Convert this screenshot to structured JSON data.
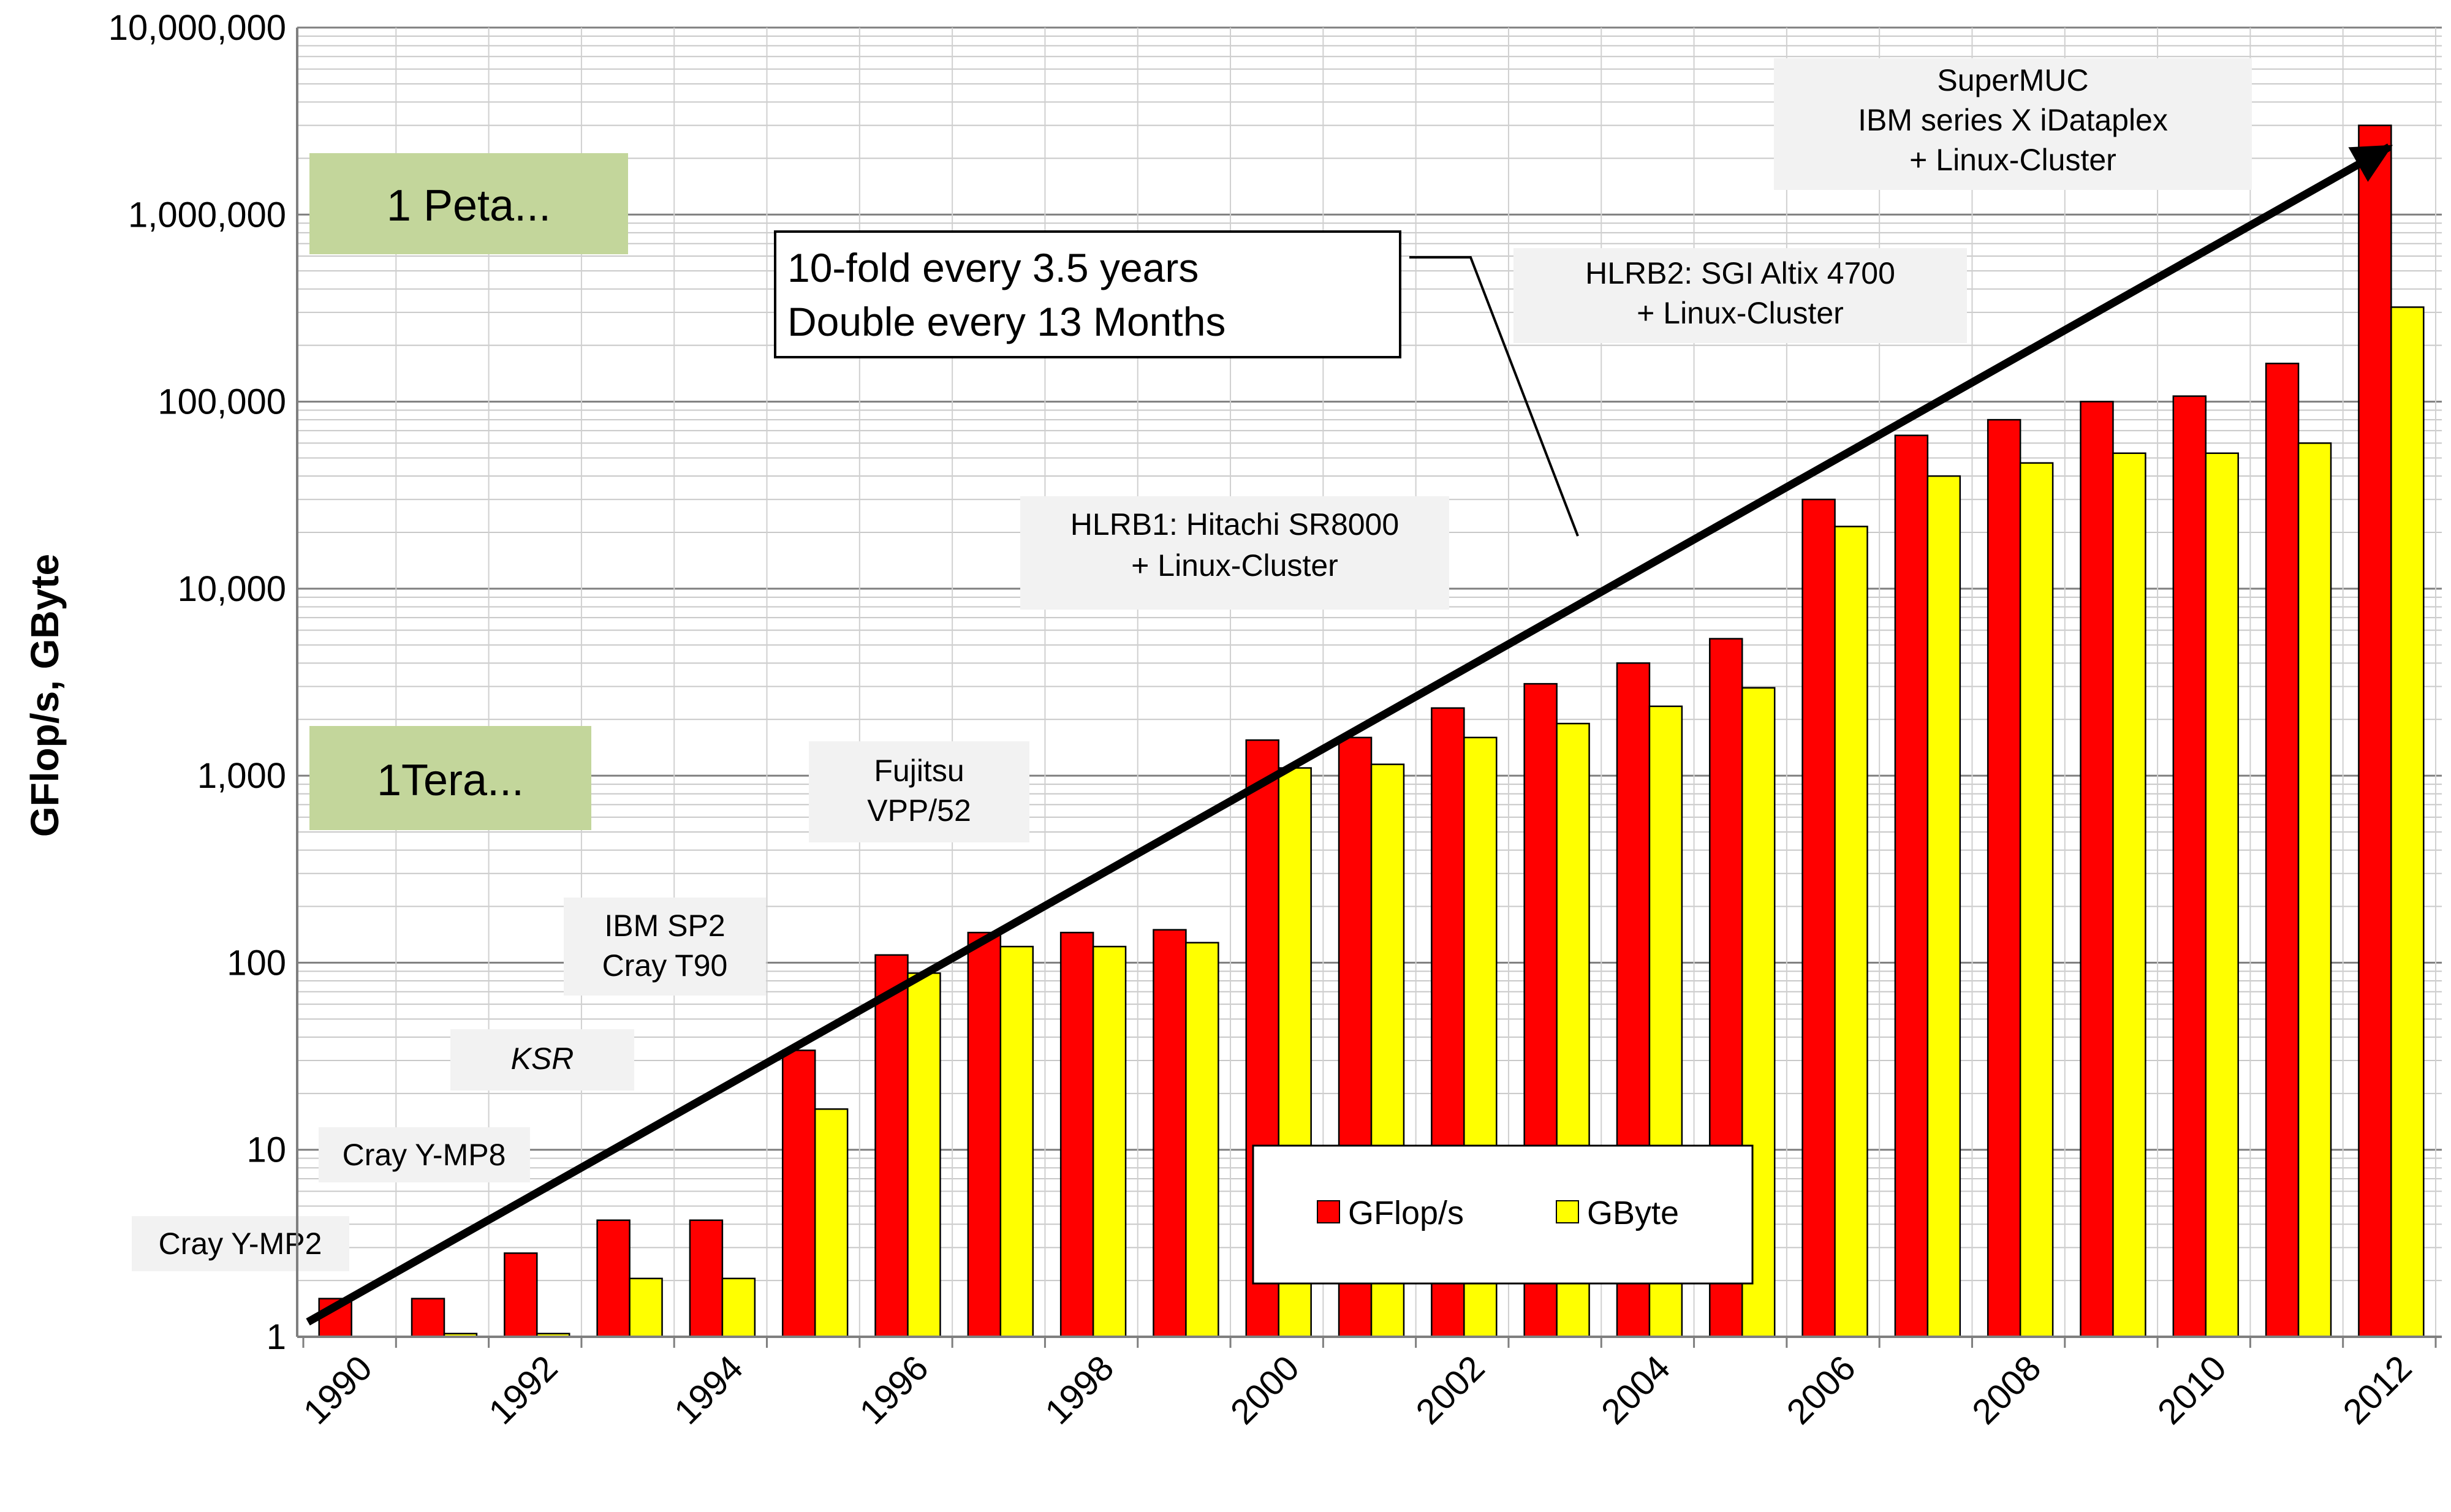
{
  "chart_data": {
    "type": "bar",
    "title": "",
    "xlabel": "",
    "ylabel": "GFlop/s, GByte",
    "yscale": "log",
    "ylim": [
      1,
      10000000
    ],
    "grid": true,
    "legend_position": "bottom-center",
    "colors": {
      "GFlop/s": "#ff0000",
      "GByte": "#ffff00",
      "bar_outline": "#000000",
      "highlight": "#c3d69b",
      "label_bg": "#f2f2f2"
    },
    "y_ticks": [
      "1",
      "10",
      "100",
      "1,000",
      "10,000",
      "100,000",
      "1,000,000",
      "10,000,000"
    ],
    "x_tick_labels": [
      "1990",
      "1992",
      "1994",
      "1996",
      "1998",
      "2000",
      "2002",
      "2004",
      "2006",
      "2008",
      "2010",
      "2012"
    ],
    "categories": [
      1990,
      1991,
      1992,
      1993,
      1994,
      1995,
      1996,
      1997,
      1998,
      1999,
      2000,
      2001,
      2002,
      2003,
      2004,
      2005,
      2006,
      2007,
      2008,
      2009,
      2010,
      2011,
      2012
    ],
    "series": [
      {
        "name": "GFlop/s",
        "values": [
          1.6,
          1.6,
          2.8,
          4.2,
          4.2,
          34,
          110,
          145,
          145,
          150,
          1550,
          1600,
          2300,
          3100,
          4000,
          5400,
          30000,
          66000,
          80000,
          100000,
          107000,
          160000,
          3000000
        ]
      },
      {
        "name": "GByte",
        "values": [
          1.0,
          1.04,
          1.04,
          2.05,
          2.05,
          16.5,
          88,
          122,
          122,
          128,
          1100,
          1150,
          1600,
          1900,
          2350,
          2950,
          21500,
          40000,
          47000,
          53000,
          53000,
          60000,
          320000
        ]
      }
    ],
    "annotations": {
      "peta": "1 Peta...",
      "tera": "1Tera...",
      "trend_line1": "10-fold every  3.5 years",
      "trend_line2": "Double every  13 Months",
      "cray_ymp2": "Cray Y-MP2",
      "cray_ymp8": "Cray Y-MP8",
      "ksr": "KSR",
      "ibm_sp2_line1": "IBM SP2",
      "ibm_sp2_line2": "Cray T90",
      "fujitsu_line1": "Fujitsu",
      "fujitsu_line2": "VPP/52",
      "hlrb1_line1": "HLRB1: Hitachi SR8000",
      "hlrb1_line2": "+ Linux-Cluster",
      "hlrb2_line1": "HLRB2: SGI Altix 4700",
      "hlrb2_line2": "+ Linux-Cluster",
      "supermuc_line1": "SuperMUC",
      "supermuc_line2": "IBM series X iDataplex",
      "supermuc_line3": "+ Linux-Cluster"
    },
    "trend": {
      "x_start": 1990,
      "y_start": 1.2,
      "x_end": 2012,
      "y_end": 2300000
    }
  }
}
